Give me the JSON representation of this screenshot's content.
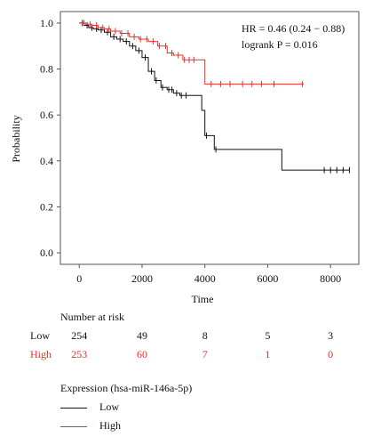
{
  "chart_data": {
    "type": "line",
    "xlabel": "Time",
    "ylabel": "Probability",
    "xlim": [
      -600,
      8900
    ],
    "ylim": [
      -0.05,
      1.05
    ],
    "x_ticks": [
      0,
      2000,
      4000,
      6000,
      8000
    ],
    "x_tick_labels": [
      "0",
      "2000",
      "4000",
      "6000",
      "8000"
    ],
    "y_ticks": [
      0.0,
      0.2,
      0.4,
      0.6,
      0.8,
      1.0
    ],
    "y_tick_labels": [
      "0.0",
      "0.2",
      "0.4",
      "0.6",
      "0.8",
      "1.0"
    ],
    "annotations": [
      "HR = 0.46 (0.24 − 0.88)",
      "logrank P = 0.016"
    ],
    "colors": {
      "Low": "#111111",
      "High": "#e8302a",
      "axis": "#555555"
    },
    "series": [
      {
        "name": "Low",
        "color": "#111111",
        "x": [
          0,
          150,
          300,
          450,
          600,
          800,
          1000,
          1200,
          1400,
          1600,
          1800,
          2000,
          2200,
          2400,
          2600,
          2800,
          3000,
          3200,
          3500,
          3900,
          4000,
          4300,
          6450,
          8600
        ],
        "y": [
          1.0,
          0.99,
          0.98,
          0.975,
          0.97,
          0.96,
          0.94,
          0.93,
          0.92,
          0.9,
          0.88,
          0.85,
          0.79,
          0.75,
          0.72,
          0.71,
          0.695,
          0.685,
          0.685,
          0.62,
          0.51,
          0.45,
          0.36,
          0.36
        ],
        "censor_x": [
          100,
          250,
          400,
          550,
          700,
          900,
          1100,
          1300,
          1500,
          1700,
          1900,
          2100,
          2300,
          2450,
          2650,
          2850,
          2950,
          3100,
          3250,
          3400,
          4050,
          4350,
          7800,
          8000,
          8200,
          8400,
          8600
        ]
      },
      {
        "name": "High",
        "color": "#e8302a",
        "x": [
          0,
          200,
          400,
          600,
          800,
          1000,
          1300,
          1600,
          1900,
          2200,
          2500,
          2800,
          3000,
          3300,
          3900,
          4000,
          7150
        ],
        "y": [
          1.0,
          0.995,
          0.99,
          0.98,
          0.975,
          0.965,
          0.955,
          0.94,
          0.93,
          0.92,
          0.9,
          0.87,
          0.86,
          0.84,
          0.84,
          0.735,
          0.735
        ],
        "censor_x": [
          150,
          350,
          550,
          750,
          950,
          1150,
          1350,
          1550,
          1750,
          1950,
          2150,
          2350,
          2550,
          2750,
          2950,
          3150,
          3350,
          3500,
          3650,
          4200,
          4500,
          4800,
          5200,
          5500,
          5800,
          6200,
          7100
        ]
      }
    ]
  },
  "risk_table": {
    "title": "Number at risk",
    "rows": [
      {
        "label": "Low",
        "values": [
          "254",
          "49",
          "8",
          "5",
          "3"
        ]
      },
      {
        "label": "High",
        "values": [
          "253",
          "60",
          "7",
          "1",
          "0"
        ]
      }
    ]
  },
  "legend": {
    "title": "Expression (hsa-miR-146a-5p)",
    "items": [
      {
        "label": "Low",
        "color": "#111111"
      },
      {
        "label": "High",
        "color": "#e8302a"
      }
    ]
  }
}
